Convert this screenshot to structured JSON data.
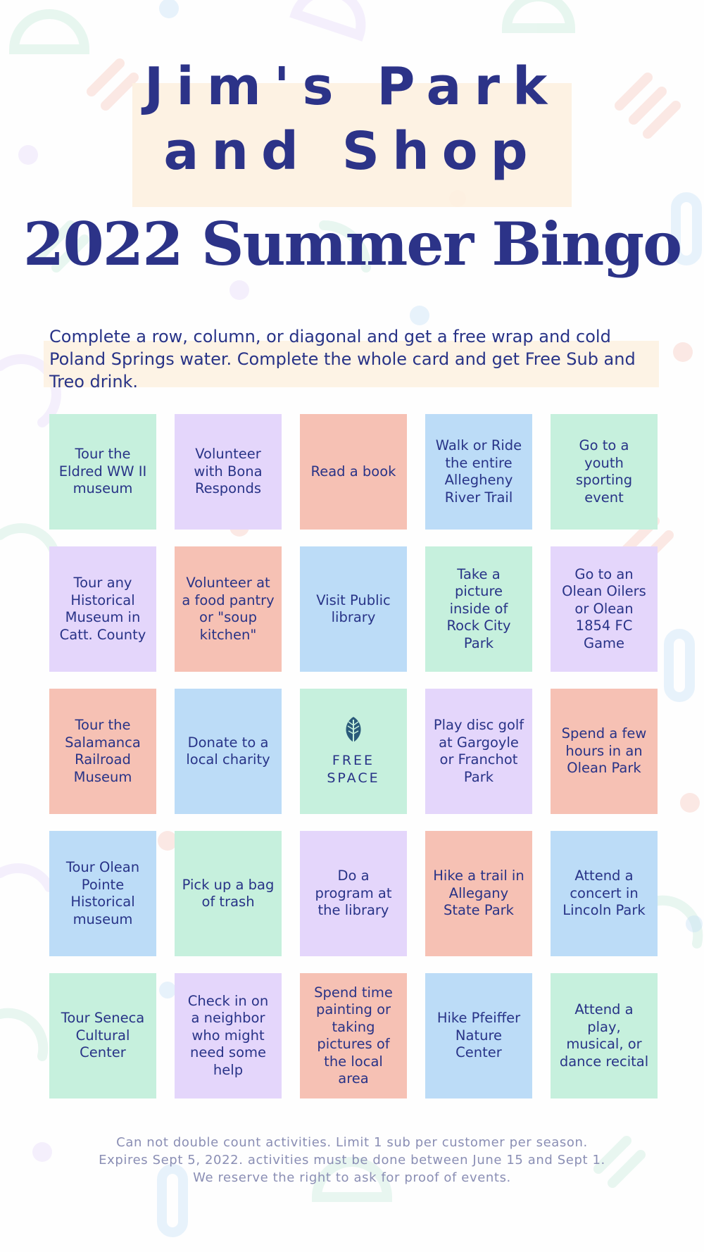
{
  "colors": {
    "navy": "#283387",
    "green": "#c6f0dd",
    "lavender": "#e4d6fb",
    "salmon": "#f6c1b4",
    "blue": "#bcdcf7",
    "cream": "#fdf1e0"
  },
  "header": {
    "title_line1": "Jim's Park",
    "title_line2": "and Shop",
    "subtitle": "2022 Summer Bingo"
  },
  "intro": "Complete a row, column, or diagonal and get a free wrap and cold Poland Springs water.  Complete the whole card and get Free Sub and Treo drink.",
  "cells": [
    {
      "text": "Tour the Eldred WW II museum",
      "color": "green"
    },
    {
      "text": "Volunteer with Bona Responds",
      "color": "lavender"
    },
    {
      "text": "Read a book",
      "color": "salmon"
    },
    {
      "text": "Walk or Ride the entire Allegheny River Trail",
      "color": "blue"
    },
    {
      "text": "Go to a youth sporting event",
      "color": "green"
    },
    {
      "text": "Tour any Historical Museum in Catt. County",
      "color": "lavender"
    },
    {
      "text": "Volunteer at a food pantry or \"soup kitchen\"",
      "color": "salmon"
    },
    {
      "text": "Visit Public library",
      "color": "blue"
    },
    {
      "text": "Take a picture inside of Rock City Park",
      "color": "green"
    },
    {
      "text": "Go to an Olean Oilers or Olean 1854 FC Game",
      "color": "lavender"
    },
    {
      "text": "Tour the Salamanca Railroad Museum",
      "color": "salmon"
    },
    {
      "text": "Donate to a local charity",
      "color": "blue"
    },
    {
      "text": "FREE SPACE",
      "color": "green",
      "free": true,
      "icon": "leaf-icon"
    },
    {
      "text": "Play disc golf at Gargoyle or Franchot Park",
      "color": "lavender"
    },
    {
      "text": "Spend a few hours in an Olean Park",
      "color": "salmon"
    },
    {
      "text": "Tour Olean Pointe Historical museum",
      "color": "blue"
    },
    {
      "text": "Pick up a bag of trash",
      "color": "green"
    },
    {
      "text": "Do a program at the library",
      "color": "lavender"
    },
    {
      "text": "Hike a trail in Allegany State Park",
      "color": "salmon"
    },
    {
      "text": "Attend a concert in Lincoln Park",
      "color": "blue"
    },
    {
      "text": "Tour Seneca Cultural Center",
      "color": "green"
    },
    {
      "text": "Check in on a neighbor who might need some help",
      "color": "lavender"
    },
    {
      "text": "Spend time painting or taking pictures of the local area",
      "color": "salmon"
    },
    {
      "text": "Hike Pfeiffer Nature Center",
      "color": "blue"
    },
    {
      "text": "Attend a play, musical, or dance recital",
      "color": "green"
    }
  ],
  "footer": {
    "line1": "Can not double count activities.  Limit 1 sub per customer per season.",
    "line2": "Expires Sept 5, 2022. activities must be done between June 15 and Sept 1.",
    "line3": "We reserve the right to ask for proof of events."
  }
}
